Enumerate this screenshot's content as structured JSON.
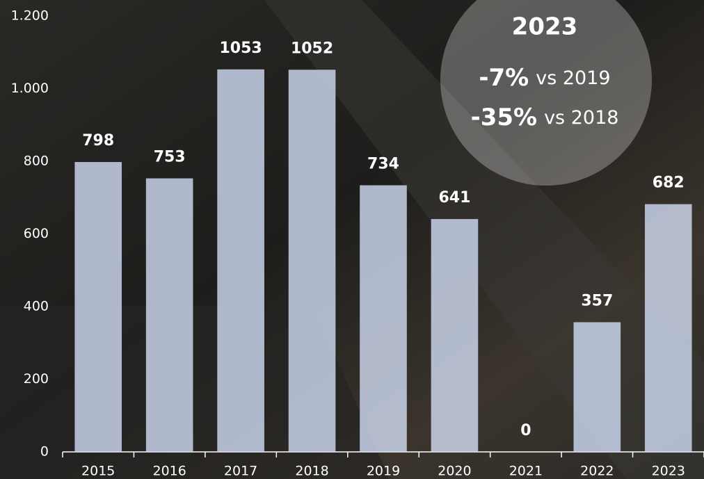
{
  "chart_data": {
    "type": "bar",
    "categories": [
      "2015",
      "2016",
      "2017",
      "2018",
      "2019",
      "2020",
      "2021",
      "2022",
      "2023"
    ],
    "values": [
      798,
      753,
      1053,
      1052,
      734,
      641,
      0,
      357,
      682
    ],
    "color": "#c9d3ea",
    "ylim": [
      0,
      1200
    ],
    "yticks": [
      0,
      200,
      400,
      600,
      800,
      {
        "value": 1000,
        "label": "1.000"
      },
      {
        "value": 1200,
        "label": "1.200"
      }
    ],
    "grid": false,
    "annotation": {
      "title": "2023",
      "lines": [
        {
          "change": "-7%",
          "text": "vs 2019"
        },
        {
          "change": "-35%",
          "text": "vs 2018"
        }
      ]
    }
  }
}
